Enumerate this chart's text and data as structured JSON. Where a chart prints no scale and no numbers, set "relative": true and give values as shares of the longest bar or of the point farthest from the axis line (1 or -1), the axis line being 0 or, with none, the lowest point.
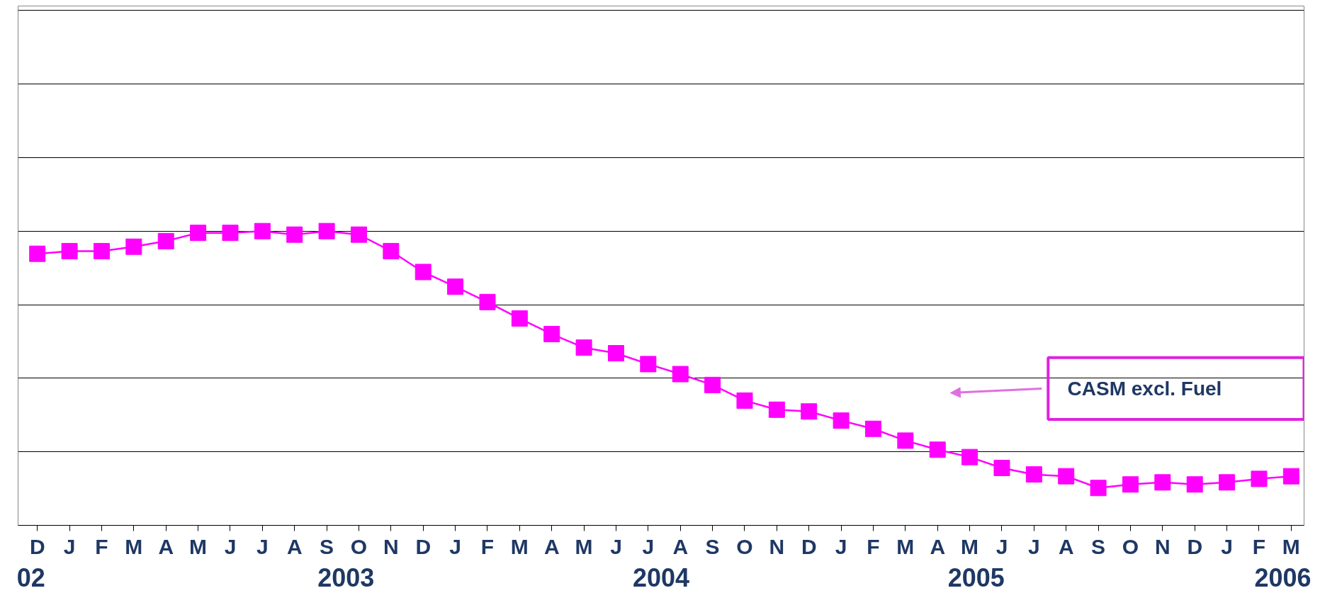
{
  "chart_data": {
    "type": "line",
    "relative": true,
    "marker": "square",
    "grid": "y",
    "categories": [
      "D",
      "J",
      "F",
      "M",
      "A",
      "M",
      "J",
      "J",
      "A",
      "S",
      "O",
      "N",
      "D",
      "J",
      "F",
      "M",
      "A",
      "M",
      "J",
      "J",
      "A",
      "S",
      "O",
      "N",
      "D",
      "J",
      "F",
      "M",
      "A",
      "M",
      "J",
      "J",
      "A",
      "S",
      "O",
      "N",
      "D",
      "J",
      "F",
      "M"
    ],
    "series": [
      {
        "color": "#ff00ff",
        "values": [
          0.923,
          0.932,
          0.932,
          0.947,
          0.966,
          0.994,
          0.994,
          1,
          0.988,
          1,
          0.988,
          0.932,
          0.861,
          0.811,
          0.759,
          0.703,
          0.65,
          0.604,
          0.585,
          0.548,
          0.514,
          0.477,
          0.424,
          0.393,
          0.387,
          0.356,
          0.328,
          0.288,
          0.257,
          0.232,
          0.195,
          0.173,
          0.167,
          0.127,
          0.139,
          0.146,
          0.139,
          0.146,
          0.158,
          0.167
        ]
      }
    ],
    "annotations": [
      "CASM excl. Fuel",
      "02",
      "2003",
      "2004",
      "2005",
      "2006"
    ]
  }
}
